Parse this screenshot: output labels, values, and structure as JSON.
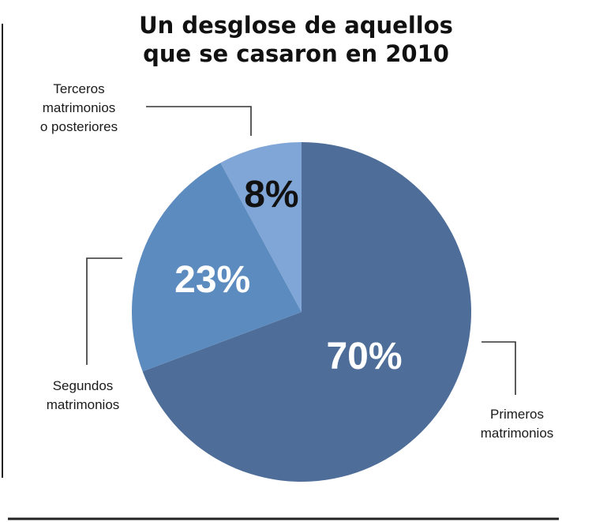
{
  "chart_data": {
    "type": "pie",
    "title_lines": [
      "Un desglose de aquellos",
      "que se casaron en 2010"
    ],
    "slices": [
      {
        "label_lines": [
          "Primeros",
          "matrimonios"
        ],
        "value": 70,
        "value_label": "70%",
        "color": "#4e6e99",
        "label_color": "#ffffff"
      },
      {
        "label_lines": [
          "Segundos",
          "matrimonios"
        ],
        "value": 23,
        "value_label": "23%",
        "color": "#5c8bbf",
        "label_color": "#ffffff"
      },
      {
        "label_lines": [
          "Terceros",
          "matrimonios",
          "o posteriores"
        ],
        "value": 8,
        "value_label": "8%",
        "color": "#7fa6d6",
        "label_color": "#111111"
      }
    ]
  }
}
